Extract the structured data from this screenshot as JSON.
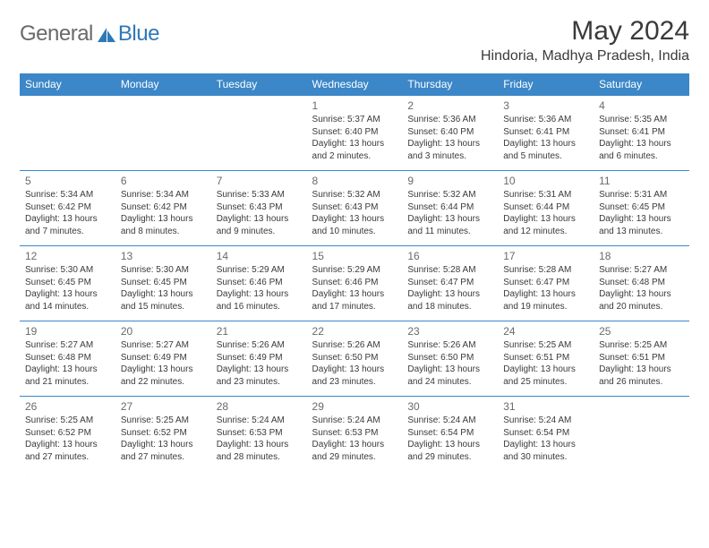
{
  "logo": {
    "general": "General",
    "blue": "Blue"
  },
  "title": "May 2024",
  "location": "Hindoria, Madhya Pradesh, India",
  "colors": {
    "header_bg": "#3b87c8",
    "header_text": "#ffffff",
    "border": "#3b87c8",
    "daynum": "#6a6a6a",
    "body_text": "#3a3a3a",
    "logo_gray": "#6a6a6a",
    "logo_blue": "#2f78b8",
    "page_bg": "#ffffff"
  },
  "day_labels": [
    "Sunday",
    "Monday",
    "Tuesday",
    "Wednesday",
    "Thursday",
    "Friday",
    "Saturday"
  ],
  "weeks": [
    [
      null,
      null,
      null,
      {
        "n": "1",
        "sunrise": "5:37 AM",
        "sunset": "6:40 PM",
        "daylight": "13 hours and 2 minutes."
      },
      {
        "n": "2",
        "sunrise": "5:36 AM",
        "sunset": "6:40 PM",
        "daylight": "13 hours and 3 minutes."
      },
      {
        "n": "3",
        "sunrise": "5:36 AM",
        "sunset": "6:41 PM",
        "daylight": "13 hours and 5 minutes."
      },
      {
        "n": "4",
        "sunrise": "5:35 AM",
        "sunset": "6:41 PM",
        "daylight": "13 hours and 6 minutes."
      }
    ],
    [
      {
        "n": "5",
        "sunrise": "5:34 AM",
        "sunset": "6:42 PM",
        "daylight": "13 hours and 7 minutes."
      },
      {
        "n": "6",
        "sunrise": "5:34 AM",
        "sunset": "6:42 PM",
        "daylight": "13 hours and 8 minutes."
      },
      {
        "n": "7",
        "sunrise": "5:33 AM",
        "sunset": "6:43 PM",
        "daylight": "13 hours and 9 minutes."
      },
      {
        "n": "8",
        "sunrise": "5:32 AM",
        "sunset": "6:43 PM",
        "daylight": "13 hours and 10 minutes."
      },
      {
        "n": "9",
        "sunrise": "5:32 AM",
        "sunset": "6:44 PM",
        "daylight": "13 hours and 11 minutes."
      },
      {
        "n": "10",
        "sunrise": "5:31 AM",
        "sunset": "6:44 PM",
        "daylight": "13 hours and 12 minutes."
      },
      {
        "n": "11",
        "sunrise": "5:31 AM",
        "sunset": "6:45 PM",
        "daylight": "13 hours and 13 minutes."
      }
    ],
    [
      {
        "n": "12",
        "sunrise": "5:30 AM",
        "sunset": "6:45 PM",
        "daylight": "13 hours and 14 minutes."
      },
      {
        "n": "13",
        "sunrise": "5:30 AM",
        "sunset": "6:45 PM",
        "daylight": "13 hours and 15 minutes."
      },
      {
        "n": "14",
        "sunrise": "5:29 AM",
        "sunset": "6:46 PM",
        "daylight": "13 hours and 16 minutes."
      },
      {
        "n": "15",
        "sunrise": "5:29 AM",
        "sunset": "6:46 PM",
        "daylight": "13 hours and 17 minutes."
      },
      {
        "n": "16",
        "sunrise": "5:28 AM",
        "sunset": "6:47 PM",
        "daylight": "13 hours and 18 minutes."
      },
      {
        "n": "17",
        "sunrise": "5:28 AM",
        "sunset": "6:47 PM",
        "daylight": "13 hours and 19 minutes."
      },
      {
        "n": "18",
        "sunrise": "5:27 AM",
        "sunset": "6:48 PM",
        "daylight": "13 hours and 20 minutes."
      }
    ],
    [
      {
        "n": "19",
        "sunrise": "5:27 AM",
        "sunset": "6:48 PM",
        "daylight": "13 hours and 21 minutes."
      },
      {
        "n": "20",
        "sunrise": "5:27 AM",
        "sunset": "6:49 PM",
        "daylight": "13 hours and 22 minutes."
      },
      {
        "n": "21",
        "sunrise": "5:26 AM",
        "sunset": "6:49 PM",
        "daylight": "13 hours and 23 minutes."
      },
      {
        "n": "22",
        "sunrise": "5:26 AM",
        "sunset": "6:50 PM",
        "daylight": "13 hours and 23 minutes."
      },
      {
        "n": "23",
        "sunrise": "5:26 AM",
        "sunset": "6:50 PM",
        "daylight": "13 hours and 24 minutes."
      },
      {
        "n": "24",
        "sunrise": "5:25 AM",
        "sunset": "6:51 PM",
        "daylight": "13 hours and 25 minutes."
      },
      {
        "n": "25",
        "sunrise": "5:25 AM",
        "sunset": "6:51 PM",
        "daylight": "13 hours and 26 minutes."
      }
    ],
    [
      {
        "n": "26",
        "sunrise": "5:25 AM",
        "sunset": "6:52 PM",
        "daylight": "13 hours and 27 minutes."
      },
      {
        "n": "27",
        "sunrise": "5:25 AM",
        "sunset": "6:52 PM",
        "daylight": "13 hours and 27 minutes."
      },
      {
        "n": "28",
        "sunrise": "5:24 AM",
        "sunset": "6:53 PM",
        "daylight": "13 hours and 28 minutes."
      },
      {
        "n": "29",
        "sunrise": "5:24 AM",
        "sunset": "6:53 PM",
        "daylight": "13 hours and 29 minutes."
      },
      {
        "n": "30",
        "sunrise": "5:24 AM",
        "sunset": "6:54 PM",
        "daylight": "13 hours and 29 minutes."
      },
      {
        "n": "31",
        "sunrise": "5:24 AM",
        "sunset": "6:54 PM",
        "daylight": "13 hours and 30 minutes."
      },
      null
    ]
  ],
  "labels": {
    "sunrise": "Sunrise: ",
    "sunset": "Sunset: ",
    "daylight": "Daylight: "
  }
}
